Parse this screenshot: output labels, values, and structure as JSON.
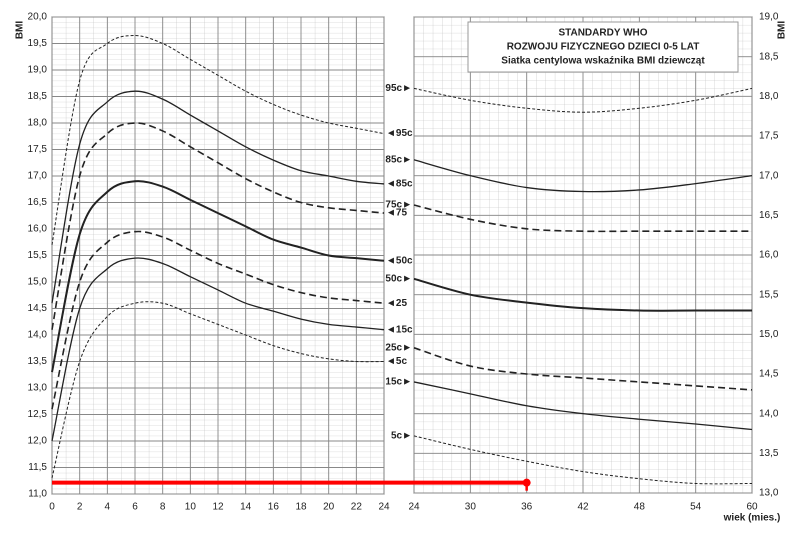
{
  "chart_data": [
    {
      "type": "line",
      "ylabel": "BMI",
      "yaxis_side": "left",
      "series_label_side": "end",
      "x": [
        0,
        2,
        4,
        6,
        8,
        10,
        12,
        14,
        16,
        18,
        20,
        22,
        24
      ],
      "xlim": [
        0,
        24
      ],
      "xticks": [
        0,
        2,
        4,
        6,
        8,
        10,
        12,
        14,
        16,
        18,
        20,
        22,
        24
      ],
      "ylim": [
        11,
        20
      ],
      "yticks": [
        {
          "value": 11,
          "label": "11,0"
        },
        {
          "value": 11.5,
          "label": "11,5"
        },
        {
          "value": 12,
          "label": "12,0"
        },
        {
          "value": 12.5,
          "label": "12,5"
        },
        {
          "value": 13,
          "label": "13,0"
        },
        {
          "value": 13.5,
          "label": "13,5"
        },
        {
          "value": 14,
          "label": "14,0"
        },
        {
          "value": 14.5,
          "label": "14,5"
        },
        {
          "value": 15,
          "label": "15,0"
        },
        {
          "value": 15.5,
          "label": "15,5"
        },
        {
          "value": 16,
          "label": "16,0"
        },
        {
          "value": 16.5,
          "label": "16,5"
        },
        {
          "value": 17,
          "label": "17,0"
        },
        {
          "value": 17.5,
          "label": "17,5"
        },
        {
          "value": 18,
          "label": "18,0"
        },
        {
          "value": 18.5,
          "label": "18,5"
        },
        {
          "value": 19,
          "label": "19,0"
        },
        {
          "value": 19.5,
          "label": "19,5"
        },
        {
          "value": 20,
          "label": "20,0"
        }
      ],
      "grid": true,
      "series": [
        {
          "name": "◄95c",
          "color": "#222222",
          "style": "dotted",
          "values": [
            15.7,
            18.8,
            19.5,
            19.65,
            19.5,
            19.2,
            18.9,
            18.6,
            18.35,
            18.15,
            18.0,
            17.9,
            17.8
          ]
        },
        {
          "name": "◄85c",
          "color": "#222222",
          "style": "solid",
          "values": [
            14.6,
            17.6,
            18.4,
            18.6,
            18.45,
            18.15,
            17.85,
            17.55,
            17.3,
            17.1,
            17.0,
            16.9,
            16.85
          ]
        },
        {
          "name": "◄75",
          "color": "#222222",
          "style": "dashed",
          "values": [
            14.1,
            17.0,
            17.8,
            18.0,
            17.85,
            17.55,
            17.25,
            16.95,
            16.7,
            16.5,
            16.4,
            16.35,
            16.3
          ]
        },
        {
          "name": "◄50c",
          "color": "#222222",
          "style": "bold",
          "values": [
            13.3,
            15.9,
            16.7,
            16.9,
            16.8,
            16.55,
            16.3,
            16.05,
            15.8,
            15.65,
            15.5,
            15.45,
            15.4
          ]
        },
        {
          "name": "◄25",
          "color": "#222222",
          "style": "dashed",
          "values": [
            12.6,
            15.0,
            15.75,
            15.95,
            15.85,
            15.6,
            15.35,
            15.15,
            14.95,
            14.8,
            14.7,
            14.65,
            14.6
          ]
        },
        {
          "name": "◄15c",
          "color": "#222222",
          "style": "solid",
          "values": [
            12.0,
            14.5,
            15.25,
            15.45,
            15.35,
            15.1,
            14.85,
            14.6,
            14.45,
            14.3,
            14.2,
            14.15,
            14.1
          ]
        },
        {
          "name": "◄5c",
          "color": "#222222",
          "style": "dotted",
          "values": [
            11.3,
            13.5,
            14.35,
            14.6,
            14.6,
            14.4,
            14.2,
            14.0,
            13.8,
            13.65,
            13.55,
            13.5,
            13.5
          ]
        }
      ]
    },
    {
      "type": "line",
      "ylabel": "BMI",
      "yaxis_side": "right",
      "series_label_side": "start",
      "title_lines": [
        "STANDARDY WHO",
        "ROZWOJU FIZYCZNEGO DZIECI 0-5 LAT",
        "Siatka centylowa wskaźnika BMI dziewcząt"
      ],
      "xlabel": "wiek (mies.)",
      "x": [
        24,
        30,
        36,
        42,
        48,
        54,
        60
      ],
      "xlim": [
        24,
        60
      ],
      "xticks": [
        24,
        30,
        36,
        42,
        48,
        54,
        60
      ],
      "ylim": [
        13,
        19
      ],
      "yticks": [
        {
          "value": 13,
          "label": "13,0"
        },
        {
          "value": 13.5,
          "label": "13,5"
        },
        {
          "value": 14,
          "label": "14,0"
        },
        {
          "value": 14.5,
          "label": "14,5"
        },
        {
          "value": 15,
          "label": "15,0"
        },
        {
          "value": 15.5,
          "label": "15,5"
        },
        {
          "value": 16,
          "label": "16,0"
        },
        {
          "value": 16.5,
          "label": "16,5"
        },
        {
          "value": 17,
          "label": "17,0"
        },
        {
          "value": 17.5,
          "label": "17,5"
        },
        {
          "value": 18,
          "label": "18,0"
        },
        {
          "value": 18.5,
          "label": "18,5"
        },
        {
          "value": 19,
          "label": "19,0"
        }
      ],
      "grid": true,
      "series": [
        {
          "name": "95c►",
          "color": "#222222",
          "style": "dotted",
          "values": [
            18.1,
            17.95,
            17.85,
            17.8,
            17.85,
            17.95,
            18.1
          ]
        },
        {
          "name": "85c►",
          "color": "#222222",
          "style": "solid",
          "values": [
            17.2,
            17.0,
            16.85,
            16.8,
            16.82,
            16.9,
            17.0
          ]
        },
        {
          "name": "75c►",
          "color": "#222222",
          "style": "dashed",
          "values": [
            16.63,
            16.45,
            16.33,
            16.3,
            16.3,
            16.3,
            16.3
          ]
        },
        {
          "name": "50c►",
          "color": "#222222",
          "style": "bold",
          "values": [
            15.7,
            15.5,
            15.4,
            15.33,
            15.3,
            15.3,
            15.3
          ]
        },
        {
          "name": "25c►",
          "color": "#222222",
          "style": "dashed",
          "values": [
            14.83,
            14.6,
            14.5,
            14.45,
            14.4,
            14.35,
            14.3
          ]
        },
        {
          "name": "15c►",
          "color": "#222222",
          "style": "solid",
          "values": [
            14.4,
            14.25,
            14.1,
            14.0,
            13.93,
            13.87,
            13.8
          ]
        },
        {
          "name": "5c►",
          "color": "#222222",
          "style": "dotted",
          "values": [
            13.72,
            13.55,
            13.4,
            13.27,
            13.18,
            13.12,
            13.12
          ]
        }
      ],
      "marker": {
        "x": 36,
        "y": 13.13,
        "color": "#ff0000"
      }
    }
  ]
}
